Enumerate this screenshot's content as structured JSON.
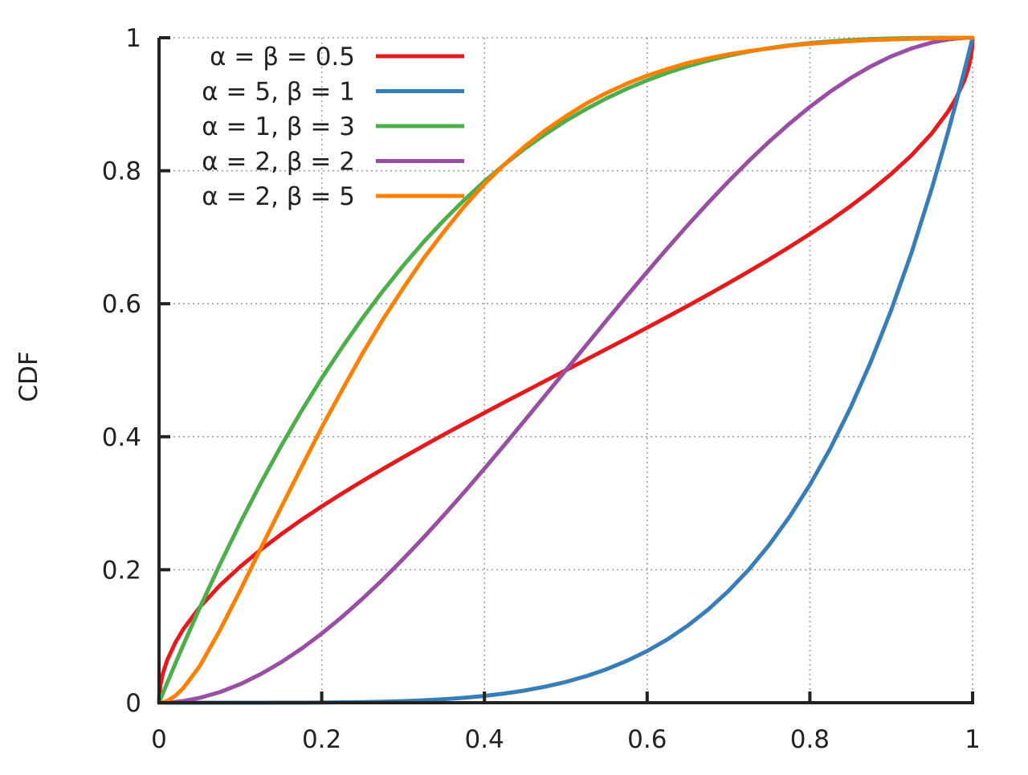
{
  "chart_data": {
    "type": "line",
    "title": "",
    "xlabel": "",
    "ylabel": "CDF",
    "xlim": [
      0,
      1
    ],
    "ylim": [
      0,
      1
    ],
    "grid": true,
    "legend_position": "top-left",
    "xticks": [
      {
        "value": 0,
        "label": "0"
      },
      {
        "value": 0.2,
        "label": "0.2"
      },
      {
        "value": 0.4,
        "label": "0.4"
      },
      {
        "value": 0.6,
        "label": "0.6"
      },
      {
        "value": 0.8,
        "label": "0.8"
      },
      {
        "value": 1,
        "label": "1"
      }
    ],
    "yticks": [
      {
        "value": 0,
        "label": "0"
      },
      {
        "value": 0.2,
        "label": "0.2"
      },
      {
        "value": 0.4,
        "label": "0.4"
      },
      {
        "value": 0.6,
        "label": "0.6"
      },
      {
        "value": 0.8,
        "label": "0.8"
      },
      {
        "value": 1,
        "label": "1"
      }
    ],
    "x": [
      0,
      0.0005,
      0.002,
      0.005,
      0.01,
      0.02,
      0.03,
      0.05,
      0.075,
      0.1,
      0.125,
      0.15,
      0.175,
      0.2,
      0.225,
      0.25,
      0.275,
      0.3,
      0.325,
      0.35,
      0.375,
      0.4,
      0.425,
      0.45,
      0.475,
      0.5,
      0.525,
      0.55,
      0.575,
      0.6,
      0.625,
      0.65,
      0.675,
      0.7,
      0.725,
      0.75,
      0.775,
      0.8,
      0.825,
      0.85,
      0.875,
      0.9,
      0.925,
      0.95,
      0.97,
      0.98,
      0.99,
      0.995,
      0.998,
      0.9995,
      1
    ],
    "series": [
      {
        "name": "α = β = 0.5",
        "color": "#e41a1c",
        "values": [
          0,
          0.0142,
          0.0285,
          0.0451,
          0.0638,
          0.0903,
          0.1108,
          0.1436,
          0.1767,
          0.2048,
          0.23,
          0.2532,
          0.2749,
          0.2952,
          0.3146,
          0.3333,
          0.3514,
          0.369,
          0.3863,
          0.4031,
          0.4197,
          0.4359,
          0.4522,
          0.4681,
          0.4841,
          0.5,
          0.5159,
          0.5319,
          0.5478,
          0.5641,
          0.5803,
          0.5969,
          0.6137,
          0.631,
          0.6486,
          0.6667,
          0.6854,
          0.7048,
          0.7251,
          0.7468,
          0.77,
          0.7952,
          0.8233,
          0.8564,
          0.8892,
          0.9097,
          0.9362,
          0.9549,
          0.9715,
          0.9858,
          1
        ]
      },
      {
        "name": "α = 5, β = 1",
        "color": "#377eb8",
        "values": [
          0,
          0,
          0,
          0,
          0,
          0,
          0,
          0,
          0,
          1e-05,
          3e-05,
          8e-05,
          0.00016,
          0.00032,
          0.00058,
          0.00098,
          0.00157,
          0.00243,
          0.00362,
          0.00525,
          0.00742,
          0.01024,
          0.01386,
          0.01845,
          0.02418,
          0.03125,
          0.0399,
          0.05033,
          0.06293,
          0.07776,
          0.09537,
          0.11603,
          0.14013,
          0.16807,
          0.20026,
          0.2373,
          0.27967,
          0.32768,
          0.38193,
          0.44371,
          0.5129,
          0.59049,
          0.67693,
          0.77378,
          0.85873,
          0.90392,
          0.95099,
          0.97525,
          0.99004,
          0.9975,
          1
        ]
      },
      {
        "name": "α = 1, β = 3",
        "color": "#4daf4a",
        "values": [
          0,
          0.0015,
          0.006,
          0.0149,
          0.0297,
          0.0588,
          0.0873,
          0.1426,
          0.2084,
          0.271,
          0.3301,
          0.3859,
          0.4385,
          0.488,
          0.5343,
          0.5781,
          0.6189,
          0.657,
          0.6925,
          0.7254,
          0.7559,
          0.784,
          0.8097,
          0.8336,
          0.8551,
          0.875,
          0.8927,
          0.9089,
          0.9233,
          0.936,
          0.9473,
          0.9571,
          0.9656,
          0.973,
          0.9792,
          0.9844,
          0.9887,
          0.992,
          0.9946,
          0.9966,
          0.998,
          0.999,
          0.9996,
          0.9999,
          1,
          1,
          1,
          1,
          1,
          1,
          1
        ]
      },
      {
        "name": "α = 2, β = 2",
        "color": "#984ea3",
        "values": [
          0,
          0,
          1e-05,
          7e-05,
          0.0003,
          0.0012,
          0.0026,
          0.0073,
          0.016,
          0.028,
          0.043,
          0.0608,
          0.0811,
          0.104,
          0.1291,
          0.1563,
          0.1852,
          0.216,
          0.2482,
          0.2818,
          0.3164,
          0.352,
          0.3883,
          0.4253,
          0.4625,
          0.5,
          0.5375,
          0.5748,
          0.6117,
          0.648,
          0.6836,
          0.7183,
          0.7518,
          0.784,
          0.8148,
          0.8438,
          0.8709,
          0.896,
          0.9189,
          0.9393,
          0.957,
          0.972,
          0.984,
          0.9928,
          0.9974,
          0.9988,
          0.9997,
          0.99993,
          0.99999,
          1,
          1
        ]
      },
      {
        "name": "α = 2, β = 5",
        "color": "#ff7f00",
        "values": [
          0,
          7.5e-06,
          0.0001,
          0.0007,
          0.0027,
          0.0103,
          0.0222,
          0.055,
          0.1093,
          0.1694,
          0.232,
          0.2935,
          0.354,
          0.414,
          0.47,
          0.525,
          0.576,
          0.623,
          0.668,
          0.708,
          0.746,
          0.78,
          0.81,
          0.837,
          0.861,
          0.8819,
          0.901,
          0.917,
          0.931,
          0.943,
          0.953,
          0.962,
          0.969,
          0.975,
          0.98,
          0.984,
          0.988,
          0.991,
          0.993,
          0.995,
          0.9965,
          0.9975,
          0.9985,
          0.9991,
          0.9996,
          0.9998,
          0.9999,
          1,
          1,
          1,
          1
        ]
      }
    ]
  }
}
